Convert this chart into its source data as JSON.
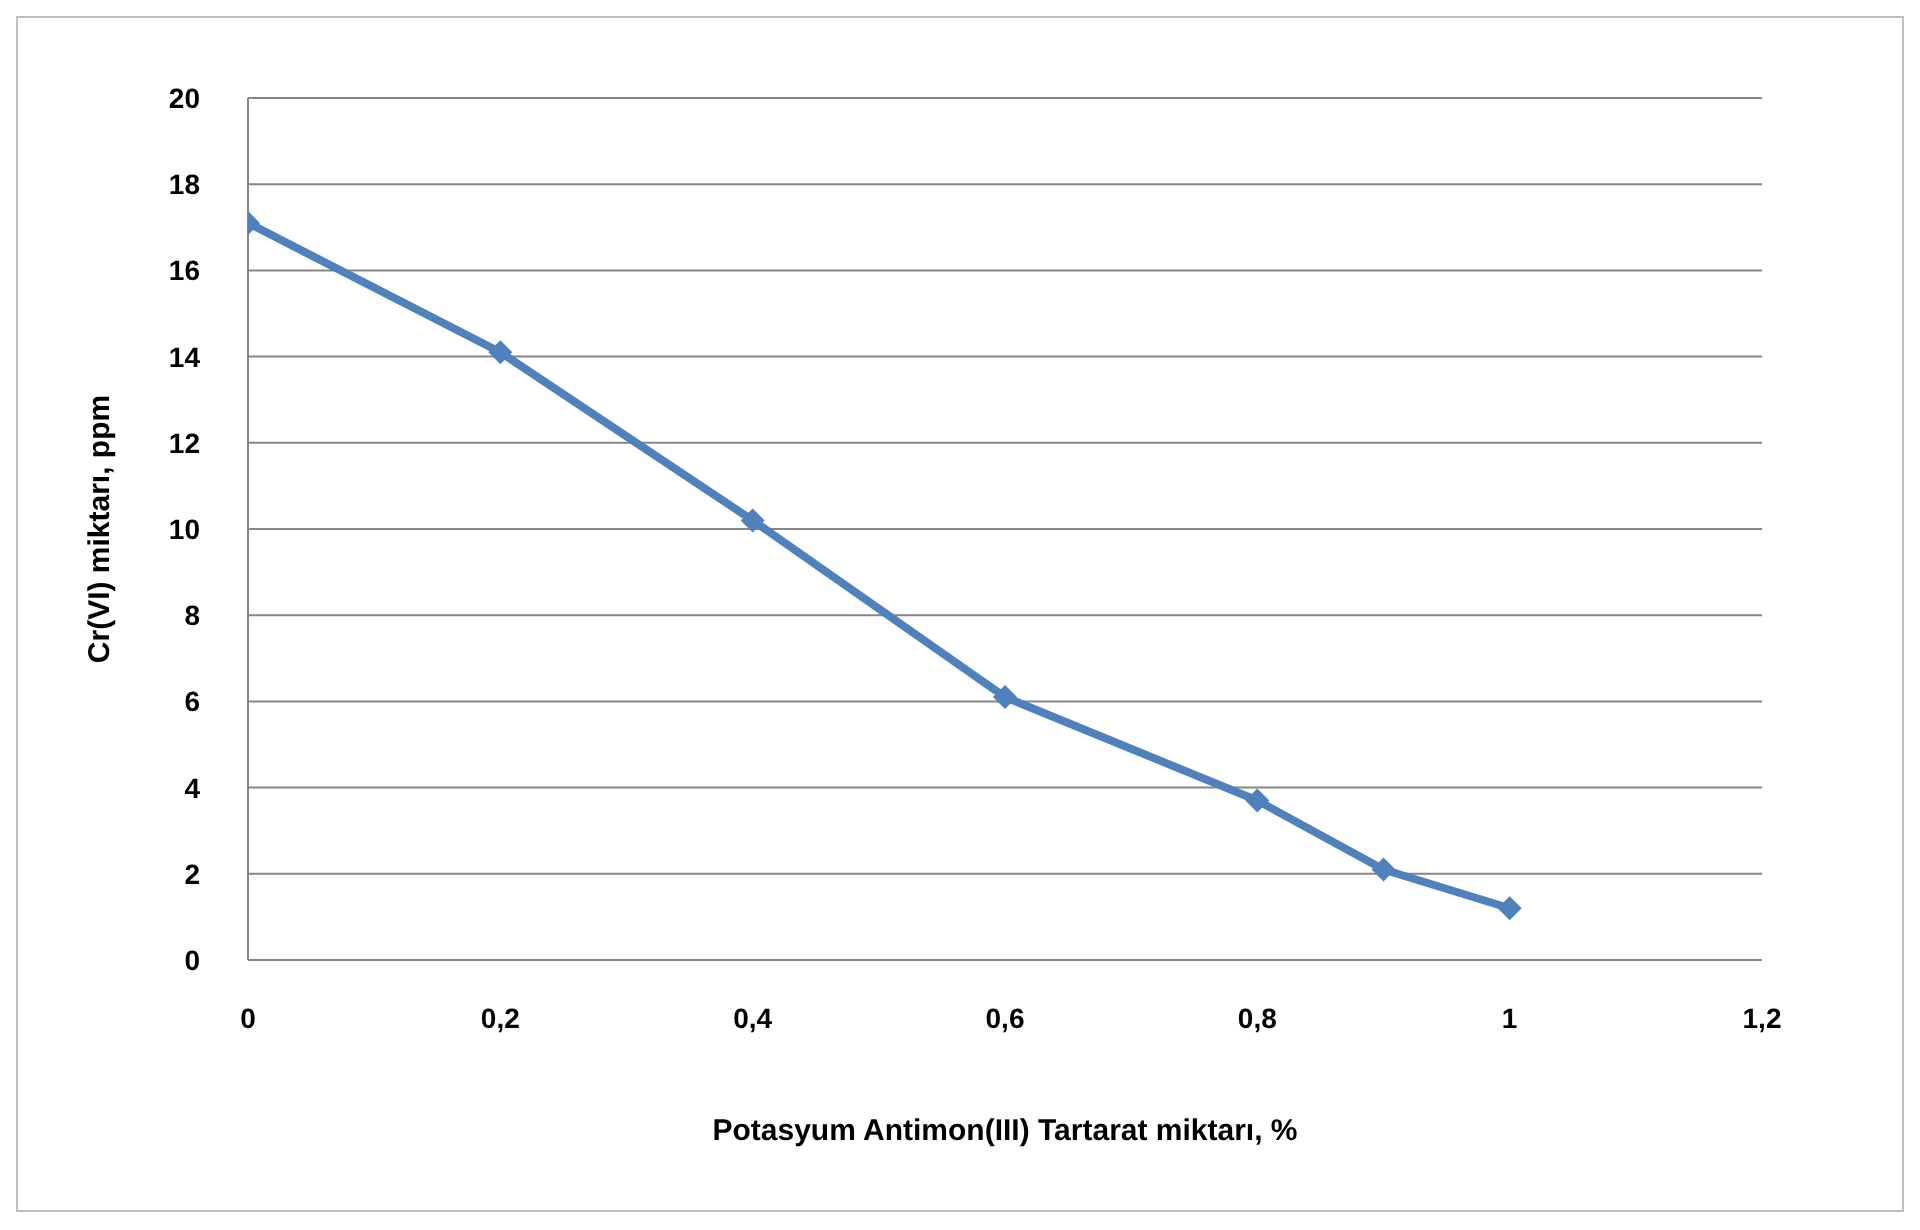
{
  "chart_data": {
    "type": "line",
    "xlabel": "Potasyum Antimon(III) Tartarat miktarı, %",
    "ylabel": "Cr(VI) miktarı, ppm",
    "x": [
      0,
      0.2,
      0.4,
      0.6,
      0.8,
      0.9,
      1
    ],
    "series": [
      {
        "color": "#4f81bd",
        "values": [
          17.1,
          14.1,
          10.2,
          6.1,
          3.7,
          2.1,
          1.2
        ]
      }
    ],
    "xlim": [
      0,
      1.2
    ],
    "xticks": [
      0,
      {
        "value": 0.2,
        "label": "0,2"
      },
      {
        "value": 0.4,
        "label": "0,4"
      },
      {
        "value": 0.6,
        "label": "0,6"
      },
      {
        "value": 0.8,
        "label": "0,8"
      },
      1,
      {
        "value": 1.2,
        "label": "1,2"
      }
    ],
    "ylim": [
      0,
      20
    ],
    "yticks": [
      0,
      2,
      4,
      6,
      8,
      10,
      12,
      14,
      16,
      18,
      20
    ],
    "grid": "y",
    "legend": false,
    "marker": "diamond",
    "line_style": "solid"
  }
}
